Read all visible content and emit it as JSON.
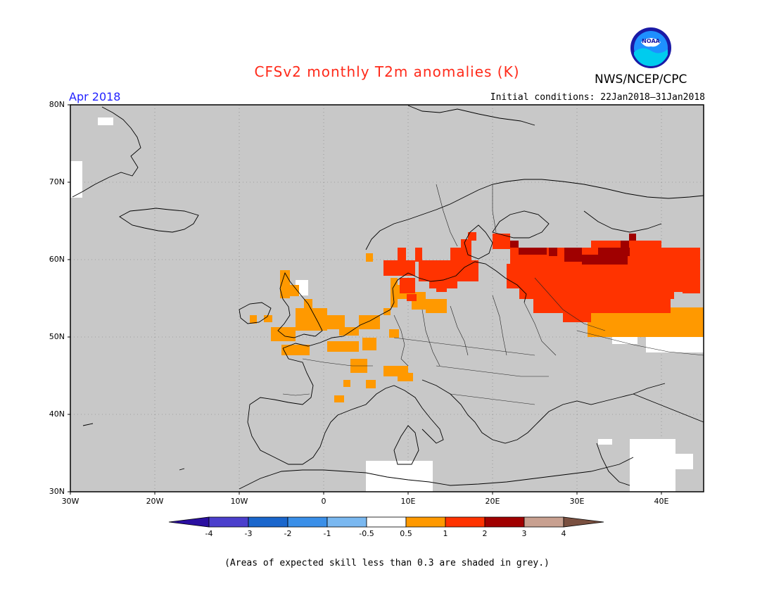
{
  "title": "CFSv2 monthly T2m anomalies (K)",
  "organization": "NWS/NCEP/CPC",
  "logo_text": "NOAA",
  "month": "Apr 2018",
  "initial_conditions": "Initial conditions: 22Jan2018–31Jan2018",
  "note": "(Areas of expected skill less than 0.3 are shaded in grey.)",
  "map": {
    "lat_labels": [
      "80N",
      "70N",
      "60N",
      "50N",
      "40N",
      "30N"
    ],
    "lon_labels": [
      "30W",
      "20W",
      "10W",
      "0",
      "10E",
      "20E",
      "30E",
      "40E"
    ],
    "lon_range": [
      -30,
      45
    ],
    "lat_range": [
      30,
      80
    ],
    "grey_color": "#c8c8c8"
  },
  "colorbar": {
    "labels": [
      "-4",
      "-3",
      "-2",
      "-1",
      "-0.5",
      "0.5",
      "1",
      "2",
      "3",
      "4"
    ],
    "colors": [
      "#2a0fa0",
      "#4b3fcc",
      "#1a66cc",
      "#3a8fe8",
      "#7ab8f0",
      "#ffffff",
      "#ff9900",
      "#ff3300",
      "#a00000",
      "#c8a090",
      "#7a5040"
    ]
  },
  "anomaly_legend": {
    "orange": "0.5 to 1",
    "red": "1 to 2",
    "darkred": "2 to 3"
  }
}
